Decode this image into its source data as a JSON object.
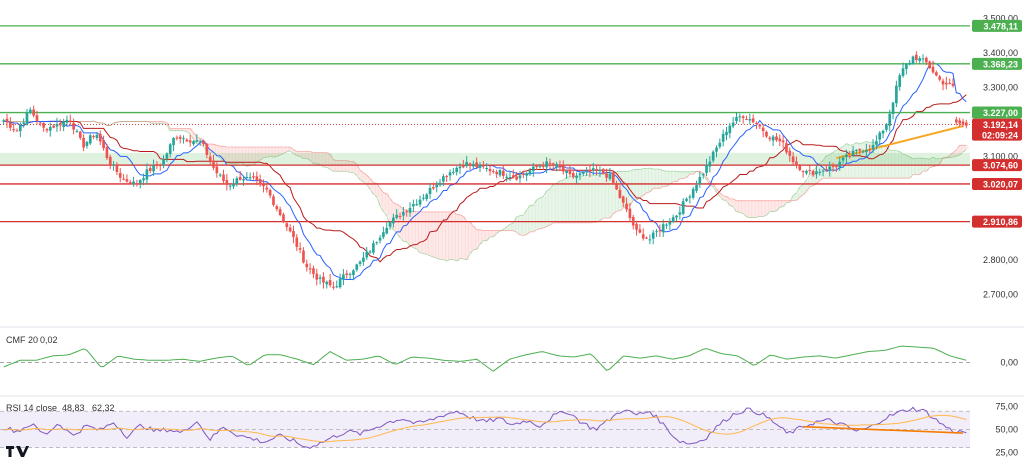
{
  "chart_data": {
    "type": "candlestick",
    "price_axis": {
      "ylim": [
        2620,
        3530
      ],
      "ticks": [
        {
          "value": 3500,
          "label": "3.500,00"
        },
        {
          "value": 3400,
          "label": "3.400,00"
        },
        {
          "value": 3300,
          "label": "3.300,00"
        },
        {
          "value": 3100,
          "label": "3.100,00"
        },
        {
          "value": 2800,
          "label": "2.800,00"
        },
        {
          "value": 2700,
          "label": "2.700,00"
        }
      ]
    },
    "levels": [
      {
        "value": 3478.11,
        "label": "3.478,11",
        "color": "#4caf50"
      },
      {
        "value": 3368.23,
        "label": "3.368,23",
        "color": "#4caf50"
      },
      {
        "value": 3227.0,
        "label": "3.227,00",
        "color": "#4caf50"
      },
      {
        "value": 3074.6,
        "label": "3.074,60",
        "color": "#d32f2f"
      },
      {
        "value": 3020.07,
        "label": "3.020,07",
        "color": "#d32f2f"
      },
      {
        "value": 2910.86,
        "label": "2.910,86",
        "color": "#d32f2f"
      }
    ],
    "current_price": {
      "value": 3192.14,
      "label": "3.192,14",
      "countdown": "02:09:24",
      "color": "#d32f2f"
    },
    "support_zone": [
      3074.6,
      3110
    ],
    "anchors": [
      3205,
      3175,
      3235,
      3180,
      3190,
      3210,
      3130,
      3170,
      3085,
      3035,
      3020,
      3060,
      3080,
      3160,
      3150,
      3140,
      3060,
      3015,
      3040,
      3030,
      3000,
      2930,
      2860,
      2780,
      2740,
      2720,
      2760,
      2790,
      2840,
      2900,
      2930,
      2960,
      2990,
      3030,
      3060,
      3080,
      3070,
      3060,
      3050,
      3040,
      3060,
      3080,
      3070,
      3040,
      3050,
      3060,
      3040,
      2960,
      2880,
      2860,
      2900,
      2930,
      2990,
      3050,
      3120,
      3190,
      3220,
      3200,
      3160,
      3140,
      3080,
      3050,
      3060,
      3070,
      3100,
      3120,
      3130,
      3200,
      3340,
      3390,
      3370,
      3320,
      3300,
      3290
    ],
    "n_candles": 290,
    "cmf": {
      "label": "CMF 20",
      "value": "0,02",
      "ylim": [
        -0.25,
        0.25
      ],
      "zero_label": "0,00",
      "color": "#4caf50",
      "anchors": [
        -0.04,
        0.02,
        0.02,
        0.06,
        0.07,
        0.13,
        -0.05,
        0.06,
        0.03,
        0.02,
        0.02,
        0.03,
        0.01,
        0.04,
        0.06,
        -0.03,
        0.07,
        0.07,
        0.03,
        -0.02,
        0.1,
        0.02,
        0.03,
        0.06,
        -0.02,
        0.05,
        0.04,
        0.02,
        0.01,
        0.03,
        -0.08,
        0.03,
        0.07,
        0.1,
        0.06,
        0.05,
        0.08,
        -0.08,
        0.06,
        0.04,
        0.06,
        0.03,
        0.06,
        0.13,
        0.08,
        0.06,
        -0.03,
        0.07,
        0.03,
        0.05,
        0.06,
        0.04,
        0.07,
        0.1,
        0.11,
        0.15,
        0.14,
        0.13,
        0.06,
        0.02
      ]
    },
    "rsi": {
      "label": "RSI 14 close",
      "value": "48,83",
      "ma_value": "62,32",
      "ylim": [
        22,
        80
      ],
      "ticks": [
        {
          "value": 75,
          "label": "75,00"
        },
        {
          "value": 50,
          "label": "50,00"
        },
        {
          "value": 25,
          "label": "25,00"
        }
      ],
      "line_color": "#7e57c2",
      "ma_color": "#ffb74d",
      "anchors": [
        52,
        48,
        56,
        44,
        57,
        43,
        54,
        49,
        58,
        42,
        55,
        48,
        50,
        46,
        60,
        39,
        53,
        44,
        40,
        36,
        43,
        38,
        30,
        35,
        42,
        48,
        45,
        52,
        58,
        62,
        56,
        60,
        66,
        70,
        63,
        58,
        62,
        55,
        60,
        54,
        65,
        70,
        58,
        50,
        60,
        72,
        66,
        70,
        55,
        38,
        34,
        40,
        55,
        66,
        72,
        68,
        58,
        45,
        52,
        58,
        60,
        55,
        48,
        52,
        62,
        68,
        73,
        70,
        58,
        48,
        47
      ]
    }
  }
}
